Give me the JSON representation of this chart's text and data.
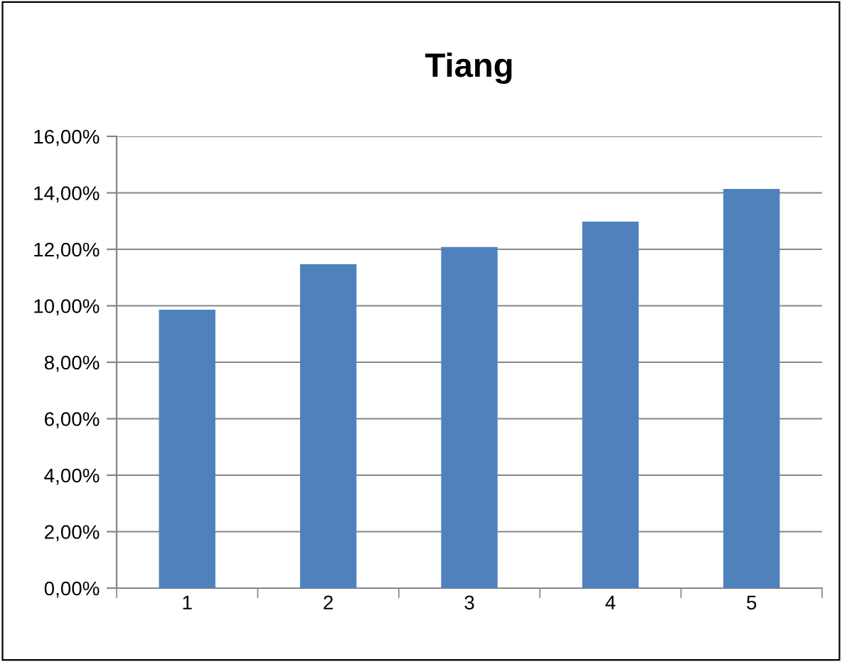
{
  "chart_data": {
    "type": "bar",
    "title": "Tiang",
    "categories": [
      "1",
      "2",
      "3",
      "4",
      "5"
    ],
    "values": [
      9.86,
      11.47,
      12.08,
      12.98,
      14.14
    ],
    "color": "#4f81bd",
    "ylim": [
      0,
      16
    ],
    "yticks": [
      {
        "value": 0,
        "label": "0,00%"
      },
      {
        "value": 2,
        "label": "2,00%"
      },
      {
        "value": 4,
        "label": "4,00%"
      },
      {
        "value": 6,
        "label": "6,00%"
      },
      {
        "value": 8,
        "label": "8,00%"
      },
      {
        "value": 10,
        "label": "10,00%"
      },
      {
        "value": 12,
        "label": "12,00%"
      },
      {
        "value": 14,
        "label": "14,00%"
      },
      {
        "value": 16,
        "label": "16,00%"
      }
    ],
    "grid": "y",
    "legend": false
  }
}
